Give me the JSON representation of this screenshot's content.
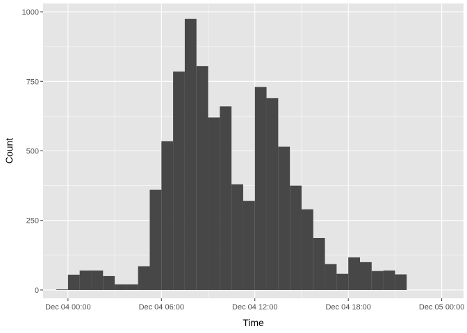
{
  "chart_data": {
    "type": "bar",
    "xlabel": "Time",
    "ylabel": "Count",
    "bin_width_minutes": 45,
    "first_bin_start": "Dec 03 23:15",
    "x_ticks": [
      "Dec 04 00:00",
      "Dec 04 06:00",
      "Dec 04 12:00",
      "Dec 04 18:00",
      "Dec 05 00:00"
    ],
    "x_tick_hours": [
      0,
      6,
      12,
      18,
      24
    ],
    "xlim_hours": [
      -1.6,
      25.4
    ],
    "y_ticks": [
      0,
      250,
      500,
      750,
      1000
    ],
    "ylim": [
      -30,
      1030
    ],
    "values": [
      2,
      55,
      70,
      70,
      50,
      20,
      20,
      85,
      360,
      535,
      785,
      975,
      805,
      620,
      660,
      380,
      320,
      730,
      690,
      515,
      375,
      290,
      187,
      93,
      58,
      117,
      100,
      68,
      70,
      56
    ],
    "grid": true,
    "colors": {
      "panel": "#e5e5e5",
      "grid_major": "#ffffff",
      "bar": "#474747",
      "tick_text": "#4d4d4d",
      "tick_mark": "#333333"
    }
  }
}
